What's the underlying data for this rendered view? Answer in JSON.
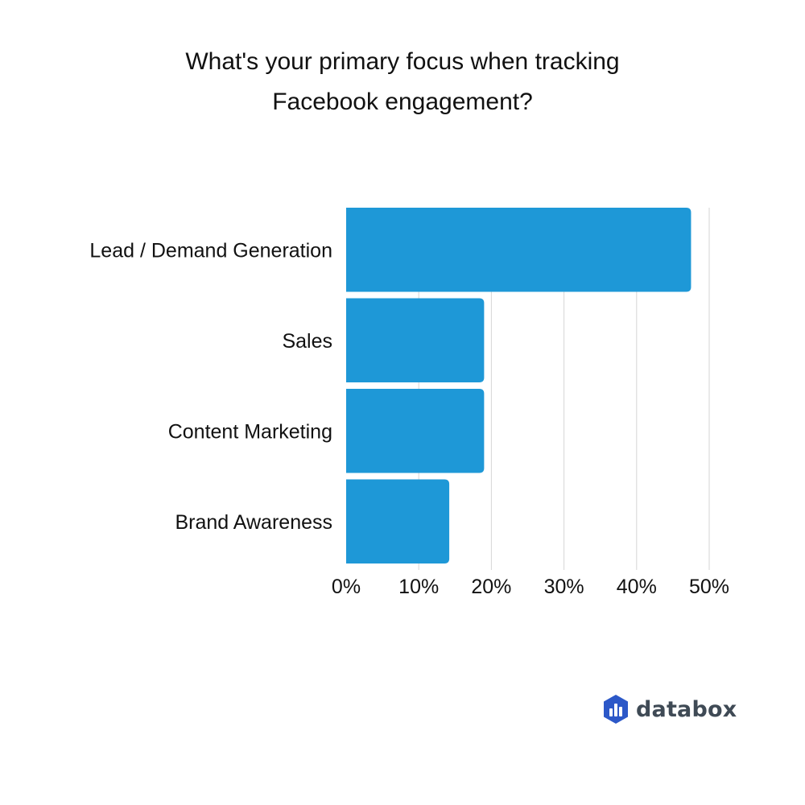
{
  "chart_data": {
    "type": "bar",
    "orientation": "horizontal",
    "title_lines": [
      "What's your primary focus when tracking",
      "Facebook engagement?"
    ],
    "categories": [
      "Lead / Demand Generation",
      "Sales",
      "Content Marketing",
      "Brand Awareness"
    ],
    "values": [
      47.5,
      19,
      19,
      14.2
    ],
    "x_ticks": [
      "0%",
      "10%",
      "20%",
      "30%",
      "40%",
      "50%"
    ],
    "xlim": [
      0,
      50
    ],
    "grid": true,
    "bar_color": "#1e98d7"
  },
  "brand": {
    "name": "databox",
    "logo_icon": "databox-logo-icon",
    "logo_color": "#2c58c8"
  }
}
